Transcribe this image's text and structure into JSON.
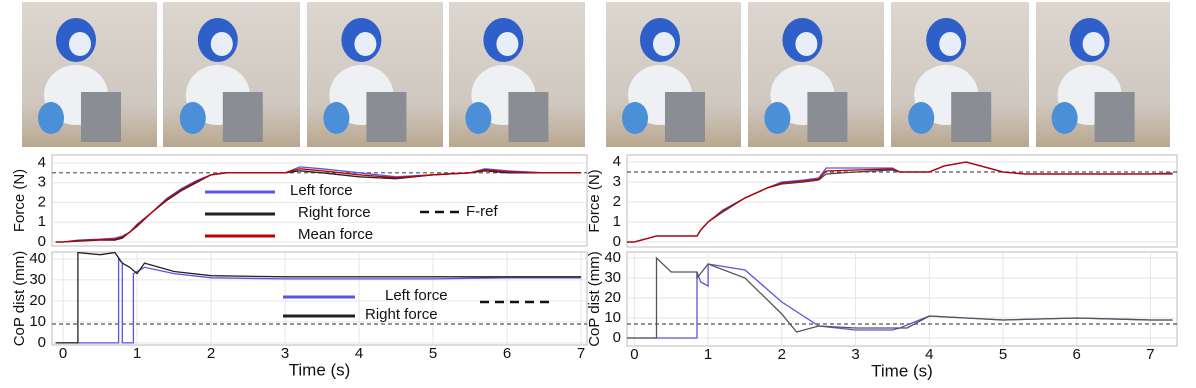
{
  "chart_data": [
    {
      "type": "line",
      "ylabel": "Force (N)",
      "xlim": [
        -0.15,
        7.08
      ],
      "ylim": [
        -0.2,
        4.4
      ],
      "yticks": [
        0,
        1,
        2,
        3,
        4
      ],
      "grid": true,
      "ref": {
        "value": 3.5,
        "name": "F-ref"
      },
      "series": [
        {
          "name": "Left force",
          "color": "#5a55e0",
          "x": [
            -0.1,
            0,
            0.2,
            0.5,
            0.7,
            0.8,
            0.9,
            1.0,
            1.2,
            1.4,
            1.6,
            1.8,
            2.0,
            2.2,
            2.5,
            3.0,
            3.2,
            3.5,
            4.0,
            4.5,
            5.0,
            5.5,
            5.7,
            6.0,
            6.5,
            7.0
          ],
          "values": [
            0,
            0,
            0.1,
            0.15,
            0.2,
            0.3,
            0.5,
            0.9,
            1.5,
            2.2,
            2.7,
            3.1,
            3.4,
            3.5,
            3.5,
            3.5,
            3.8,
            3.7,
            3.5,
            3.3,
            3.4,
            3.5,
            3.7,
            3.6,
            3.5,
            3.5
          ]
        },
        {
          "name": "Right force",
          "color": "#222222",
          "x": [
            -0.1,
            0,
            0.2,
            0.5,
            0.7,
            0.8,
            0.9,
            1.0,
            1.2,
            1.4,
            1.6,
            1.8,
            2.0,
            2.2,
            2.5,
            3.0,
            3.2,
            3.5,
            4.0,
            4.5,
            5.0,
            5.5,
            5.7,
            6.0,
            6.5,
            7.0
          ],
          "values": [
            0,
            0,
            0.05,
            0.1,
            0.1,
            0.2,
            0.5,
            0.8,
            1.5,
            2.1,
            2.6,
            3.0,
            3.4,
            3.5,
            3.5,
            3.5,
            3.6,
            3.5,
            3.3,
            3.2,
            3.4,
            3.5,
            3.6,
            3.5,
            3.5,
            3.5
          ]
        },
        {
          "name": "Mean force",
          "color": "#c00000",
          "x": [
            -0.1,
            0,
            0.2,
            0.5,
            0.7,
            0.8,
            0.9,
            1.0,
            1.2,
            1.4,
            1.6,
            1.8,
            2.0,
            2.2,
            2.5,
            3.0,
            3.2,
            3.5,
            4.0,
            4.5,
            5.0,
            5.5,
            5.7,
            6.0,
            6.5,
            7.0
          ],
          "values": [
            0,
            0,
            0.08,
            0.12,
            0.15,
            0.25,
            0.5,
            0.85,
            1.5,
            2.15,
            2.65,
            3.05,
            3.4,
            3.5,
            3.5,
            3.5,
            3.7,
            3.6,
            3.4,
            3.25,
            3.4,
            3.5,
            3.65,
            3.55,
            3.5,
            3.5
          ]
        }
      ]
    },
    {
      "type": "line",
      "ylabel": "CoP dist (mm)",
      "xlabel": "Time (s)",
      "xlim": [
        -0.15,
        7.08
      ],
      "ylim": [
        -1,
        43.3
      ],
      "yticks": [
        0,
        10,
        20,
        30,
        40
      ],
      "xticks": [
        0,
        1,
        2,
        3,
        4,
        5,
        6,
        7
      ],
      "grid": true,
      "ref": {
        "value": 9
      },
      "series": [
        {
          "name": "Left force",
          "color": "#5a55e0",
          "x": [
            -0.1,
            0.75,
            0.75,
            0.8,
            0.8,
            0.95,
            0.95,
            1.1,
            1.5,
            2,
            3,
            4,
            5,
            6,
            7
          ],
          "values": [
            0,
            0,
            40,
            38,
            0,
            0,
            33,
            36,
            33,
            31,
            30.5,
            30.5,
            30.5,
            31,
            31
          ]
        },
        {
          "name": "Right force",
          "color": "#222222",
          "x": [
            -0.1,
            0.2,
            0.2,
            0.5,
            0.7,
            0.8,
            0.9,
            1.0,
            1.1,
            1.5,
            2,
            3,
            4,
            5,
            6,
            7
          ],
          "values": [
            0,
            0,
            43,
            42,
            43,
            38,
            36,
            33,
            38,
            34,
            32,
            31.5,
            31.5,
            31.5,
            31.5,
            31.5
          ]
        }
      ]
    },
    {
      "type": "line",
      "ylabel": "Force (N)",
      "xlim": [
        -0.1,
        7.36
      ],
      "ylim": [
        -0.25,
        4.35
      ],
      "yticks": [
        0,
        1,
        2,
        3,
        4
      ],
      "grid": true,
      "ref": {
        "value": 3.5
      },
      "series": [
        {
          "color": "#5a55e0",
          "x": [
            -0.1,
            0,
            0.3,
            0.85,
            0.9,
            1.0,
            1.2,
            1.5,
            1.8,
            2.0,
            2.3,
            2.5,
            2.6,
            3.0,
            3.5,
            3.6,
            4.0,
            4.2,
            4.5,
            4.7,
            5.0,
            5.3,
            6.0,
            7.0,
            7.3
          ],
          "values": [
            0,
            0,
            0.3,
            0.3,
            0.6,
            1.0,
            1.6,
            2.2,
            2.7,
            3.0,
            3.1,
            3.2,
            3.7,
            3.7,
            3.7,
            3.5,
            3.5,
            3.8,
            4.0,
            3.8,
            3.5,
            3.4,
            3.4,
            3.4,
            3.45
          ]
        },
        {
          "color": "#444444",
          "x": [
            -0.1,
            0,
            0.3,
            0.85,
            0.9,
            1.0,
            1.2,
            1.5,
            1.8,
            2.0,
            2.3,
            2.5,
            2.6,
            3.0,
            3.5,
            3.6,
            4.0,
            4.2,
            4.5,
            4.7,
            5.0,
            5.3,
            6.0,
            7.0,
            7.3
          ],
          "values": [
            0,
            0,
            0.3,
            0.3,
            0.6,
            1.0,
            1.5,
            2.2,
            2.7,
            2.9,
            3.0,
            3.1,
            3.4,
            3.5,
            3.6,
            3.5,
            3.5,
            3.8,
            4.0,
            3.8,
            3.5,
            3.4,
            3.4,
            3.4,
            3.4
          ]
        },
        {
          "color": "#c00000",
          "x": [
            -0.1,
            0,
            0.3,
            0.85,
            0.9,
            1.0,
            1.2,
            1.5,
            1.8,
            2.0,
            2.3,
            2.5,
            2.6,
            3.0,
            3.5,
            3.6,
            4.0,
            4.2,
            4.5,
            4.7,
            5.0,
            5.3,
            6.0,
            7.0,
            7.3
          ],
          "values": [
            0,
            0,
            0.3,
            0.3,
            0.6,
            1.0,
            1.55,
            2.2,
            2.7,
            2.95,
            3.05,
            3.15,
            3.55,
            3.6,
            3.65,
            3.5,
            3.5,
            3.8,
            4.0,
            3.8,
            3.5,
            3.4,
            3.4,
            3.4,
            3.42
          ]
        }
      ]
    },
    {
      "type": "line",
      "ylabel": "CoP dist (mm)",
      "xlabel": "Time (s)",
      "xlim": [
        -0.1,
        7.36
      ],
      "ylim": [
        -4,
        43
      ],
      "yticks": [
        0,
        10,
        20,
        30,
        40
      ],
      "xticks": [
        0,
        1,
        2,
        3,
        4,
        5,
        6,
        7
      ],
      "grid": true,
      "ref": {
        "value": 7
      },
      "series": [
        {
          "color": "#5a55e0",
          "x": [
            -0.1,
            0.85,
            0.85,
            0.9,
            1.0,
            1.0,
            1.5,
            2.0,
            2.5,
            3.0,
            3.5,
            3.6,
            3.8,
            4.0,
            5,
            6,
            7,
            7.3
          ],
          "values": [
            0,
            0,
            33,
            28,
            26,
            37,
            34,
            18,
            6,
            4,
            4,
            5,
            8,
            11,
            9,
            10,
            9,
            9
          ]
        },
        {
          "color": "#555555",
          "x": [
            -0.1,
            0.3,
            0.3,
            0.5,
            0.85,
            0.85,
            1.0,
            1.5,
            2.0,
            2.2,
            2.5,
            3.0,
            3.5,
            3.7,
            4.0,
            5,
            6,
            7,
            7.3
          ],
          "values": [
            0,
            0,
            40,
            33,
            33,
            30,
            37,
            30,
            12,
            3,
            6,
            5,
            5,
            5,
            11,
            9,
            10,
            9,
            9
          ]
        }
      ]
    }
  ]
}
